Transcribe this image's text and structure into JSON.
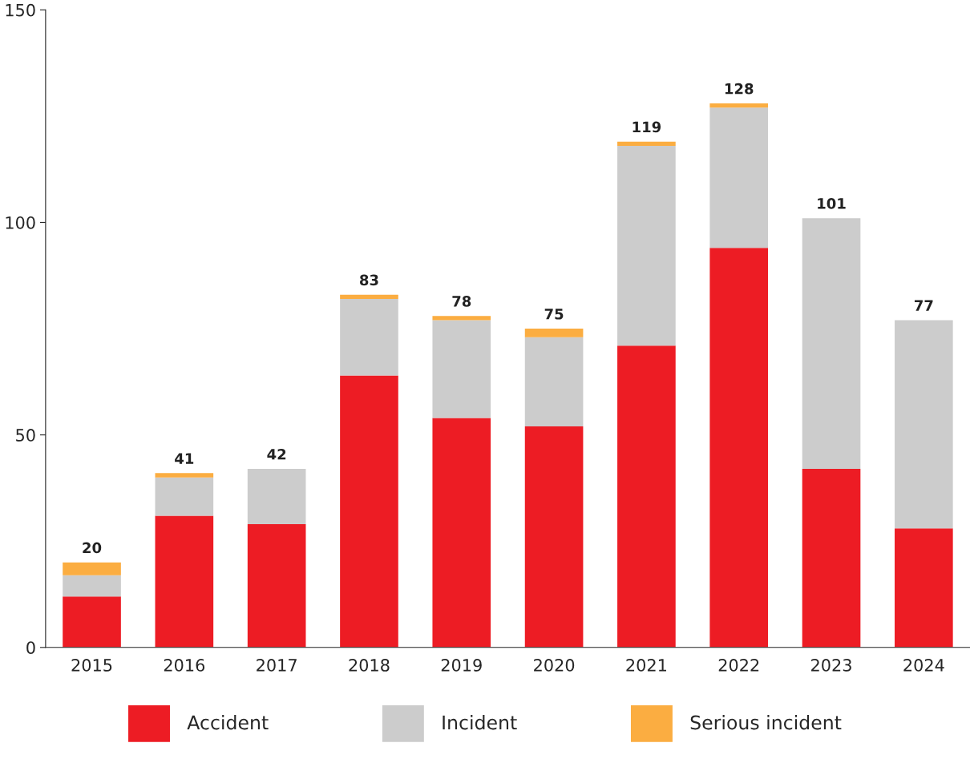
{
  "chart_data": {
    "type": "bar",
    "stacked": true,
    "categories": [
      "2015",
      "2016",
      "2017",
      "2018",
      "2019",
      "2020",
      "2021",
      "2022",
      "2023",
      "2024"
    ],
    "series": [
      {
        "name": "Accident",
        "color": "#ed1c24",
        "values": [
          12,
          31,
          29,
          64,
          54,
          52,
          71,
          94,
          42,
          28
        ]
      },
      {
        "name": "Incident",
        "color": "#cccccc",
        "values": [
          5,
          9,
          13,
          18,
          23,
          21,
          47,
          33,
          59,
          49
        ]
      },
      {
        "name": "Serious incident",
        "color": "#fbad41",
        "values": [
          3,
          1,
          0,
          1,
          1,
          2,
          1,
          1,
          0,
          0
        ]
      }
    ],
    "totals": [
      "20",
      "41",
      "42",
      "83",
      "78",
      "75",
      "119",
      "128",
      "101",
      "77"
    ],
    "ylim": [
      0,
      150
    ],
    "yticks": [
      0,
      50,
      100,
      150
    ],
    "grid": false,
    "legend": "bottom"
  }
}
